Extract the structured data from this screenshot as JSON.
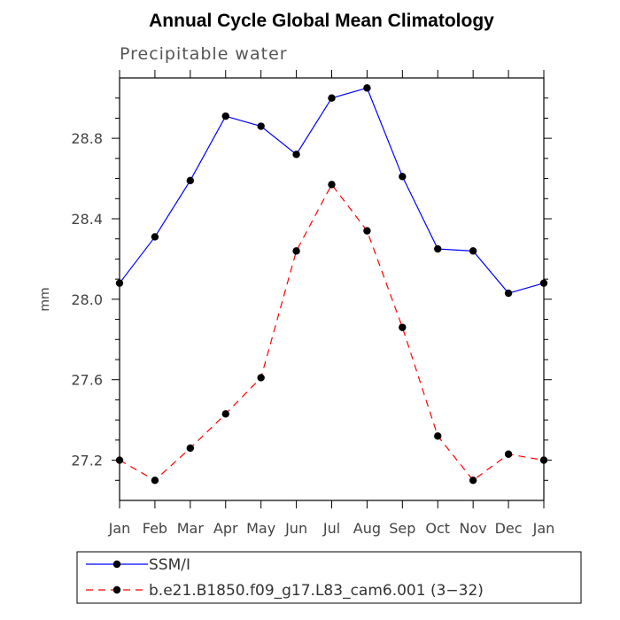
{
  "chart_data": {
    "type": "line",
    "title": "Annual Cycle Global Mean Climatology",
    "subtitle": "Precipitable water",
    "xlabel": "",
    "ylabel": "mm",
    "categories": [
      "Jan",
      "Feb",
      "Mar",
      "Apr",
      "May",
      "Jun",
      "Jul",
      "Aug",
      "Sep",
      "Oct",
      "Nov",
      "Dec",
      "Jan"
    ],
    "ylim": [
      27.0,
      29.1
    ],
    "yticks": [
      "27.2",
      "27.6",
      "28.0",
      "28.4",
      "28.8"
    ],
    "grid": false,
    "legend_position": "bottom",
    "series": [
      {
        "name": "SSM/I",
        "color": "#0000ff",
        "dash": "solid",
        "marker": "filled-circle",
        "values": [
          28.08,
          28.31,
          28.59,
          28.91,
          28.86,
          28.72,
          29.0,
          29.05,
          28.61,
          28.25,
          28.24,
          28.03,
          28.08
        ]
      },
      {
        "name": "b.e21.B1850.f09_g17.L83_cam6.001 (3−32)",
        "color": "#ff0000",
        "dash": "dashed",
        "marker": "filled-circle",
        "values": [
          27.2,
          27.1,
          27.26,
          27.43,
          27.61,
          28.24,
          28.57,
          28.34,
          27.86,
          27.32,
          27.1,
          27.23,
          27.2
        ]
      }
    ]
  }
}
